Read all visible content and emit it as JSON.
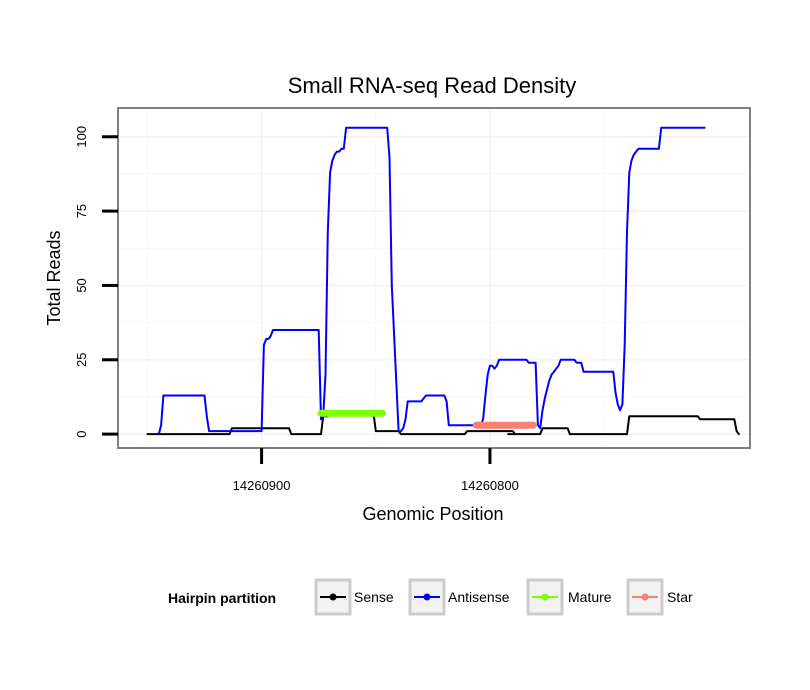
{
  "chart_data": {
    "type": "line",
    "title": "Small RNA-seq Read Density",
    "xlabel": "Genomic Position",
    "ylabel": "Total Reads",
    "x_reversed": true,
    "xlim": [
      14260962,
      14260687
    ],
    "ylim": [
      -4,
      109
    ],
    "x_ticks": [
      14260900,
      14260800
    ],
    "x_tick_labels": [
      "14260900",
      "14260800"
    ],
    "y_ticks": [
      0,
      25,
      50,
      75,
      100
    ],
    "y_tick_labels": [
      "0",
      "25",
      "50",
      "75",
      "100"
    ],
    "legend": {
      "title": "Hairpin partition",
      "position": "bottom",
      "entries": [
        "Sense",
        "Antisense",
        "Mature",
        "Star"
      ]
    },
    "series": [
      {
        "name": "Sense",
        "color": "#000000",
        "width": 2,
        "x": [
          14260950,
          14260914,
          14260913,
          14260888,
          14260887,
          14260874,
          14260873,
          14260871,
          14260870,
          14260851,
          14260850,
          14260840,
          14260839,
          14260811,
          14260810,
          14260790,
          14260789,
          14260792,
          14260778,
          14260777,
          14260774,
          14260773,
          14260766,
          14260765,
          14260740,
          14260739,
          14260714,
          14260713,
          14260709,
          14260708,
          14260693,
          14260692,
          14260691
        ],
        "y": [
          0,
          0,
          2,
          2,
          0,
          0,
          6,
          6,
          7,
          7,
          1,
          1,
          0,
          0,
          1,
          1,
          0,
          0,
          0,
          2,
          2,
          2,
          2,
          0,
          0,
          6,
          6,
          6,
          6,
          5,
          5,
          1,
          0
        ]
      },
      {
        "name": "Antisense",
        "color": "#0000ff",
        "width": 2,
        "x": [
          14260945,
          14260944,
          14260943,
          14260925,
          14260924,
          14260923,
          14260900,
          14260899,
          14260898,
          14260897,
          14260896,
          14260895,
          14260875,
          14260874,
          14260873,
          14260872,
          14260871,
          14260870,
          14260869,
          14260868,
          14260867,
          14260866,
          14260865,
          14260864,
          14260863,
          14260862,
          14260861,
          14260860,
          14260845,
          14260844,
          14260843,
          14260840,
          14260839,
          14260838,
          14260837,
          14260836,
          14260830,
          14260829,
          14260828,
          14260827,
          14260826,
          14260825,
          14260824,
          14260822,
          14260820,
          14260819,
          14260818,
          14260804,
          14260803,
          14260802,
          14260801,
          14260800,
          14260799,
          14260798,
          14260797,
          14260796,
          14260795,
          14260794,
          14260793,
          14260792,
          14260791,
          14260784,
          14260783,
          14260780,
          14260779,
          14260778,
          14260777,
          14260776,
          14260775,
          14260774,
          14260773,
          14260772,
          14260771,
          14260770,
          14260769,
          14260768,
          14260767,
          14260766,
          14260765,
          14260764,
          14260763,
          14260762,
          14260760,
          14260759,
          14260746,
          14260745,
          14260744,
          14260743,
          14260742,
          14260741,
          14260740,
          14260739,
          14260738,
          14260737,
          14260736,
          14260735,
          14260726,
          14260725,
          14260724,
          14260723,
          14260722,
          14260721,
          14260706
        ],
        "y": [
          0,
          3,
          13,
          13,
          6,
          1,
          1,
          30,
          32,
          32,
          33,
          35,
          35,
          5,
          6,
          20,
          68,
          88,
          92,
          94,
          95,
          95,
          96,
          96,
          103,
          103,
          103,
          103,
          103,
          93,
          50,
          1,
          1,
          2,
          5,
          11,
          11,
          12,
          13,
          13,
          13,
          13,
          13,
          13,
          13,
          11,
          3,
          3,
          5,
          13,
          20,
          23,
          23,
          22,
          23,
          25,
          25,
          25,
          25,
          25,
          25,
          25,
          24,
          24,
          3,
          2,
          8,
          12,
          15,
          18,
          20,
          21,
          22,
          23,
          25,
          25,
          25,
          25,
          25,
          25,
          25,
          24,
          24,
          21,
          21,
          14,
          10,
          8,
          10,
          30,
          68,
          88,
          92,
          94,
          95,
          96,
          96,
          103,
          103,
          103,
          103,
          103,
          103
        ]
      },
      {
        "name": "Mature",
        "color": "#7fff00",
        "width": 7,
        "x": [
          14260874,
          14260847
        ],
        "y": [
          7,
          7
        ]
      },
      {
        "name": "Star",
        "color": "#fa8072",
        "width": 7,
        "x": [
          14260806,
          14260781
        ],
        "y": [
          3,
          3
        ]
      }
    ]
  }
}
